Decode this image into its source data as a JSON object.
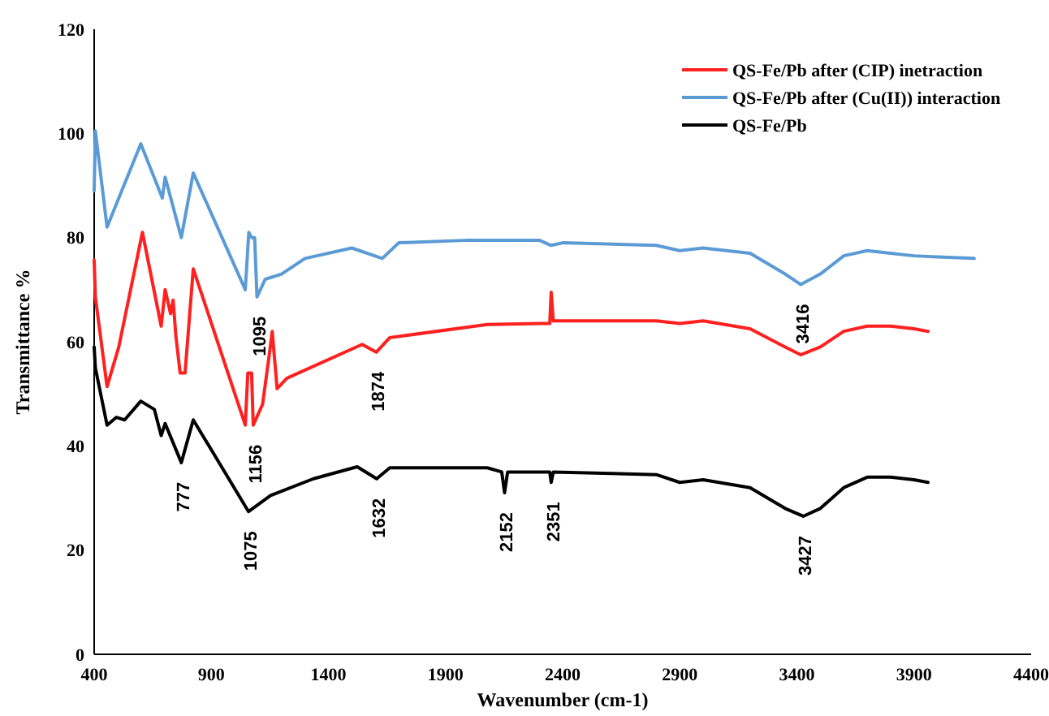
{
  "chart_data": {
    "type": "line",
    "xlabel": "Wavenumber (cm-1)",
    "ylabel": "Transmittance %",
    "xlim": [
      400,
      4400
    ],
    "xticks": [
      400,
      900,
      1400,
      1900,
      2400,
      2900,
      3400,
      3900,
      4400
    ],
    "ylim": [
      0,
      120
    ],
    "yticks": [
      0,
      20,
      40,
      60,
      80,
      100,
      120
    ],
    "grid": false,
    "legend": "top right",
    "marker": "none",
    "line_style": "solid",
    "series": [
      {
        "name": "QS-Fe/Pb after (CIP) inetraction",
        "color": "#ff2020",
        "x": [
          400,
          405,
          455,
          505,
          606,
          686,
          703,
          726,
          737,
          749,
          767,
          788,
          823,
          1045,
          1056,
          1072,
          1079,
          1119,
          1149,
          1160,
          1181,
          1223,
          1544,
          1604,
          1662,
          2078,
          2300,
          2345,
          2351,
          2360,
          2800,
          2900,
          3000,
          3200,
          3350,
          3416,
          3500,
          3600,
          3700,
          3800,
          3900,
          3960
        ],
        "values": [
          75.7,
          68.6,
          51.4,
          59,
          81,
          63,
          70,
          65.4,
          68,
          61,
          54,
          54,
          74,
          44,
          54,
          54,
          44,
          48,
          58,
          62,
          51,
          53,
          59.5,
          58,
          60.8,
          63.3,
          63.5,
          63.5,
          69.5,
          64,
          64,
          63.5,
          64,
          62.5,
          59,
          57.5,
          59,
          62,
          63,
          63,
          62.5,
          62
        ]
      },
      {
        "name": "QS-Fe/Pb after (Cu(II)) interaction",
        "color": "#5b9bd5",
        "x": [
          400,
          405,
          455,
          505,
          599,
          691,
          703,
          772,
          823,
          1045,
          1060,
          1072,
          1085,
          1095,
          1130,
          1200,
          1300,
          1500,
          1630,
          1700,
          2000,
          2300,
          2351,
          2400,
          2800,
          2900,
          3000,
          3200,
          3350,
          3416,
          3500,
          3600,
          3700,
          3800,
          3900,
          4000,
          4157
        ],
        "values": [
          89,
          100.5,
          82,
          87.6,
          98,
          87.6,
          91.6,
          80,
          92.4,
          70,
          81,
          80,
          80,
          68.6,
          72,
          73,
          76,
          78,
          76,
          79,
          79.5,
          79.5,
          78.5,
          79,
          78.5,
          77.5,
          78,
          77,
          73,
          71,
          73,
          76.5,
          77.5,
          77,
          76.5,
          76.3,
          76
        ]
      },
      {
        "name": "QS-Fe/Pb",
        "color": "#000000",
        "x": [
          400,
          405,
          455,
          495,
          530,
          599,
          657,
          686,
          703,
          772,
          823,
          1059,
          1153,
          1336,
          1523,
          1606,
          1662,
          2078,
          2140,
          2152,
          2165,
          2300,
          2345,
          2351,
          2360,
          2800,
          2900,
          3000,
          3200,
          3350,
          3427,
          3500,
          3600,
          3700,
          3800,
          3900,
          3960
        ],
        "values": [
          59,
          55,
          44,
          45.5,
          45,
          48.6,
          47,
          42,
          44.3,
          36.8,
          45,
          27.4,
          30.5,
          33.7,
          36,
          33.7,
          35.8,
          35.8,
          35,
          31,
          35,
          35,
          35,
          33,
          35,
          34.5,
          33,
          33.5,
          32,
          28,
          26.5,
          28,
          32,
          34,
          34,
          33.5,
          33
        ]
      }
    ],
    "annotations": [
      {
        "text": "777",
        "x": 772,
        "y": 36.8
      },
      {
        "text": "1075",
        "x": 1059,
        "y": 27.4
      },
      {
        "text": "1095",
        "x": 1095,
        "y": 68.6
      },
      {
        "text": "1156",
        "x": 1079,
        "y": 44
      },
      {
        "text": "1874",
        "x": 1604,
        "y": 58
      },
      {
        "text": "1632",
        "x": 1606,
        "y": 33.7
      },
      {
        "text": "2152",
        "x": 2152,
        "y": 31
      },
      {
        "text": "2351",
        "x": 2351,
        "y": 33
      },
      {
        "text": "3416",
        "x": 3416,
        "y": 71
      },
      {
        "text": "3427",
        "x": 3427,
        "y": 26.5
      }
    ]
  }
}
